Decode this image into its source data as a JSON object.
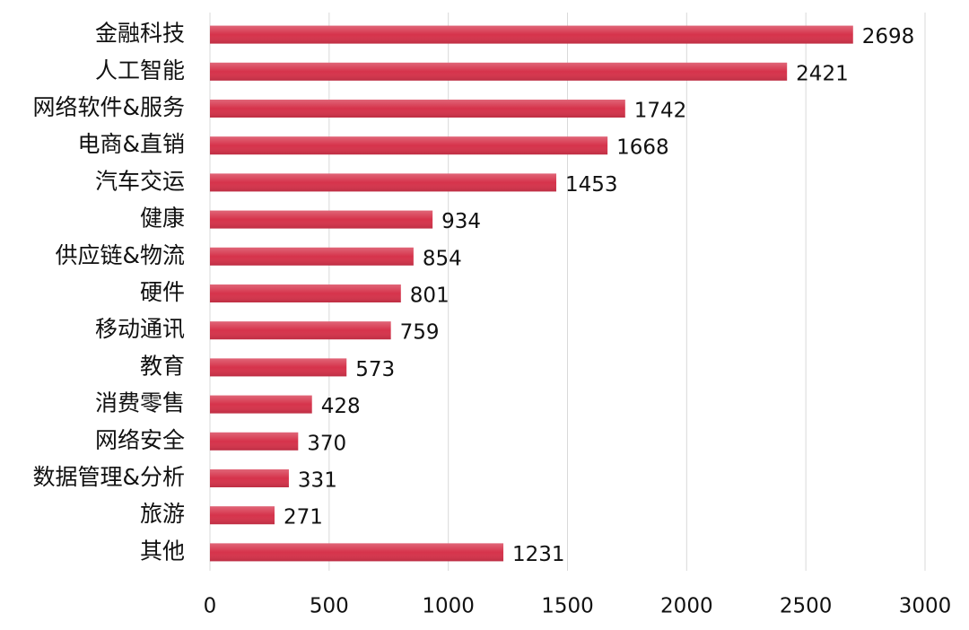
{
  "chart_data": {
    "type": "bar",
    "orientation": "horizontal",
    "categories": [
      "金融科技",
      "人工智能",
      "网络软件&服务",
      "电商&直销",
      "汽车交运",
      "健康",
      "供应链&物流",
      "硬件",
      "移动通讯",
      "教育",
      "消费零售",
      "网络安全",
      "数据管理&分析",
      "旅游",
      "其他"
    ],
    "values": [
      2698,
      2421,
      1742,
      1668,
      1453,
      934,
      854,
      801,
      759,
      573,
      428,
      370,
      331,
      271,
      1231
    ],
    "color": "#d6334b",
    "xlim": [
      0,
      3000
    ],
    "xticks": [
      0,
      500,
      1000,
      1500,
      2000,
      2500,
      3000
    ],
    "grid": true
  }
}
